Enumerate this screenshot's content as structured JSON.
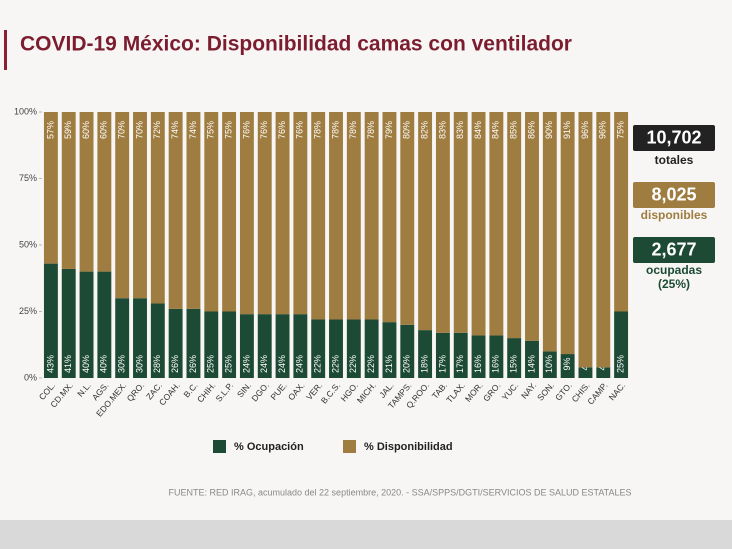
{
  "chart_data": {
    "type": "stacked_bar",
    "title": "COVID-19 México: Disponibilidad camas con ventilador",
    "categories": [
      "COL.",
      "CD.MX.",
      "N.L.",
      "AGS.",
      "EDO.MEX.",
      "QRO.",
      "ZAC.",
      "COAH.",
      "B.C.",
      "CHIH.",
      "S.L.P.",
      "SIN.",
      "DGO.",
      "PUE.",
      "OAX.",
      "VER.",
      "B.C.S.",
      "HGO.",
      "MICH.",
      "JAL.",
      "TAMPS.",
      "Q.ROO.",
      "TAB.",
      "TLAX.",
      "MOR.",
      "GRO.",
      "YUC.",
      "NAY.",
      "SON.",
      "GTO.",
      "CHIS.",
      "CAMP.",
      "NAC."
    ],
    "series": [
      {
        "name": "% Ocupación",
        "color": "#1c4a35",
        "values": [
          43,
          41,
          40,
          40,
          30,
          30,
          28,
          26,
          26,
          25,
          25,
          24,
          24,
          24,
          24,
          22,
          22,
          22,
          22,
          21,
          20,
          18,
          17,
          17,
          16,
          16,
          15,
          14,
          10,
          9,
          4,
          4,
          25
        ],
        "value_labels": [
          "43%",
          "41%",
          "40%",
          "40%",
          "30%",
          "30%",
          "28%",
          "26%",
          "26%",
          "25%",
          "25%",
          "24%",
          "24%",
          "24%",
          "24%",
          "22%",
          "22%",
          "22%",
          "22%",
          "21%",
          "20%",
          "18%",
          "17%",
          "17%",
          "16%",
          "16%",
          "15%",
          "14%",
          "10%",
          "9%",
          "4%",
          "4%",
          "25%"
        ]
      },
      {
        "name": "% Disponibilidad",
        "color": "#9f7c40",
        "values": [
          57,
          59,
          60,
          60,
          70,
          70,
          72,
          74,
          74,
          75,
          75,
          76,
          76,
          76,
          76,
          78,
          78,
          78,
          78,
          79,
          80,
          82,
          83,
          83,
          84,
          84,
          85,
          86,
          90,
          91,
          96,
          96,
          75
        ],
        "value_labels": [
          "57%",
          "59%",
          "60%",
          "60%",
          "70%",
          "70%",
          "72%",
          "74%",
          "74%",
          "75%",
          "75%",
          "76%",
          "76%",
          "76%",
          "76%",
          "78%",
          "78%",
          "78%",
          "78%",
          "79%",
          "80%",
          "82%",
          "83%",
          "83%",
          "84%",
          "84%",
          "85%",
          "86%",
          "90%",
          "91%",
          "96%",
          "96%",
          "75%"
        ]
      }
    ],
    "ylim": [
      0,
      100
    ],
    "yticks": [
      {
        "value": 0,
        "label": "0%"
      },
      {
        "value": 25,
        "label": "25%"
      },
      {
        "value": 50,
        "label": "50%"
      },
      {
        "value": 75,
        "label": "75%"
      },
      {
        "value": 100,
        "label": "100%"
      }
    ],
    "grid": false,
    "legend": "bottom"
  },
  "summary": {
    "total": "10,702",
    "total_label": "totales",
    "available": "8,025",
    "available_label": "disponibles",
    "occupied": "2,677",
    "occupied_label": "ocupadas",
    "occupied_pct": "(25%)"
  },
  "footer": "FUENTE: RED IRAG, acumulado del 22 septiembre, 2020. -  SSA/SPPS/DGTI/SERVICIOS DE SALUD ESTATALES"
}
